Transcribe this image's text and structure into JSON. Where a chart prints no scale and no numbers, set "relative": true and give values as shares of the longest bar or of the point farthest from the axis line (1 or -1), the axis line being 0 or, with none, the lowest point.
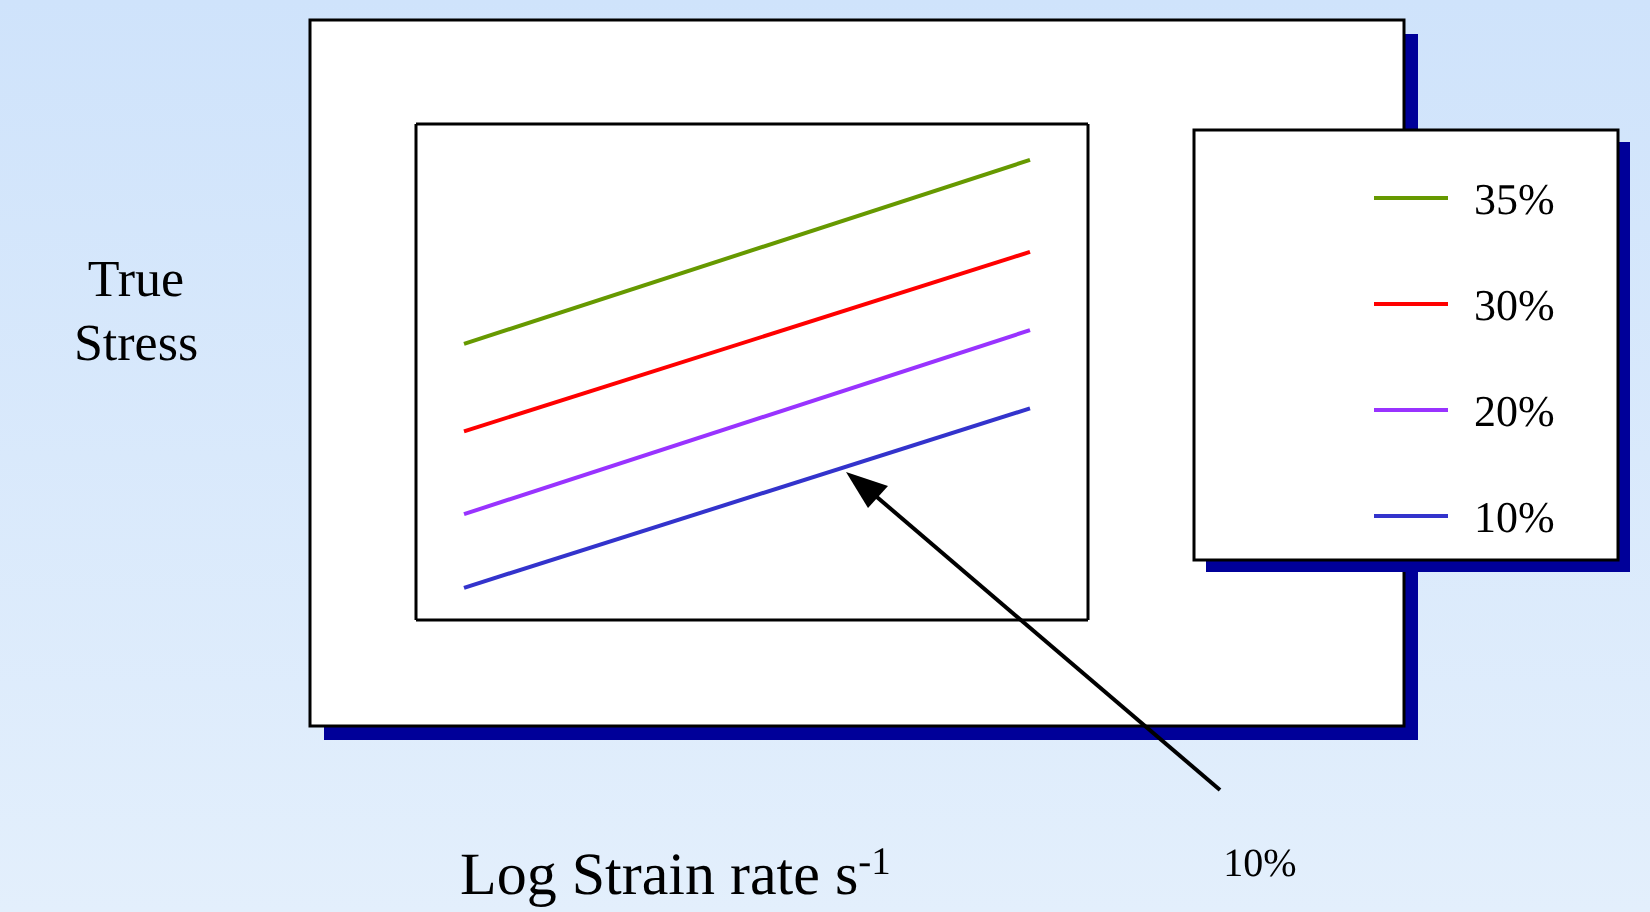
{
  "chart_data": {
    "type": "line",
    "relative": true,
    "categories": [
      null,
      null
    ],
    "series": [
      {
        "name": "35%",
        "color": "#669900",
        "values": [
          0.6,
          1.0
        ]
      },
      {
        "name": "30%",
        "color": "#ff0000",
        "values": [
          0.41,
          0.8
        ]
      },
      {
        "name": "20%",
        "color": "#9933ff",
        "values": [
          0.23,
          0.63
        ]
      },
      {
        "name": "10%",
        "color": "#3333cc",
        "values": [
          0.07,
          0.46
        ]
      }
    ],
    "legend": "right",
    "line_style": "solid",
    "annotations": [
      "True Stress",
      "Log Strain rate s$^{-1}$",
      "10%"
    ]
  }
}
